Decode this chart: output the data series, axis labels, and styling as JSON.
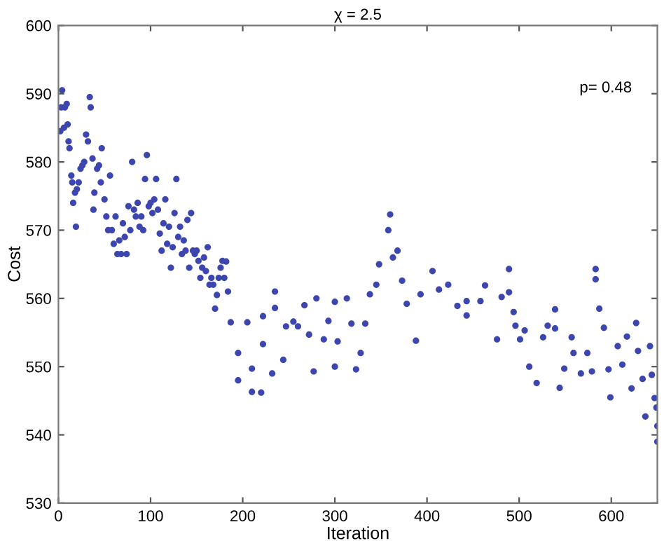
{
  "chart_data": {
    "type": "scatter",
    "title": "χ = 2.5",
    "xlabel": "Iteration",
    "ylabel": "Cost",
    "xlim": [
      0,
      650
    ],
    "ylim": [
      530,
      600
    ],
    "xticks": [
      0,
      100,
      200,
      300,
      400,
      500,
      600
    ],
    "yticks": [
      530,
      540,
      550,
      560,
      570,
      580,
      590,
      600
    ],
    "marker": "circle",
    "grid": false,
    "annotations": [
      "p= 0.48"
    ],
    "series": [
      {
        "color": "#3c46ae",
        "x": [
          2,
          3,
          4,
          6,
          7,
          9,
          10,
          11,
          12,
          14,
          15,
          16,
          18,
          19,
          20,
          22,
          24,
          26,
          28,
          30,
          32,
          34,
          35,
          37,
          38,
          39,
          42,
          44,
          46,
          47,
          50,
          52,
          54,
          56,
          58,
          60,
          62,
          64,
          66,
          68,
          70,
          72,
          74,
          76,
          78,
          80,
          82,
          84,
          86,
          88,
          90,
          92,
          94,
          96,
          98,
          100,
          102,
          104,
          106,
          108,
          110,
          112,
          114,
          116,
          118,
          120,
          122,
          124,
          126,
          128,
          130,
          132,
          134,
          136,
          138,
          140,
          142,
          144,
          146,
          148,
          150,
          152,
          154,
          156,
          158,
          160,
          162,
          164,
          166,
          168,
          170,
          172,
          174,
          176,
          178,
          180,
          182,
          184,
          187,
          195,
          195,
          205,
          210,
          210,
          220,
          222,
          222,
          232,
          235,
          235,
          244,
          247,
          255,
          260,
          267,
          272,
          277,
          280,
          288,
          293,
          300,
          300,
          303,
          313,
          318,
          323,
          328,
          333,
          338,
          345,
          348,
          358,
          360,
          363,
          368,
          373,
          378,
          388,
          393,
          406,
          413,
          423,
          433,
          443,
          443,
          458,
          463,
          476,
          481,
          489,
          489,
          494,
          496,
          501,
          506,
          511,
          519,
          526,
          531,
          539,
          539,
          544,
          549,
          557,
          559,
          567,
          574,
          579,
          583,
          583,
          587,
          592,
          597,
          599,
          607,
          612,
          617,
          622,
          627,
          629,
          634,
          637,
          642,
          644,
          647,
          649,
          650,
          650
        ],
        "values": [
          584.5,
          588,
          590.5,
          585,
          588,
          588.5,
          585.5,
          583,
          582,
          578,
          577,
          574,
          575.5,
          570.5,
          576,
          577,
          579,
          579.5,
          580,
          584,
          583,
          589.5,
          588,
          580.5,
          573,
          575.5,
          579,
          579.5,
          577,
          582,
          574.5,
          572,
          570,
          578,
          570,
          568,
          572,
          566.5,
          568.5,
          566.5,
          571,
          569,
          566.5,
          573.5,
          570,
          580,
          573,
          572,
          574,
          570.5,
          572,
          570,
          577.5,
          581,
          573.5,
          574,
          572.5,
          574.5,
          577.5,
          573,
          569.5,
          567,
          571,
          574.5,
          568,
          570.5,
          564.5,
          567.5,
          572.5,
          577.5,
          569,
          570.5,
          566.5,
          568.5,
          567,
          571.5,
          564.5,
          572.5,
          567,
          566.5,
          567,
          565.5,
          563,
          564.5,
          566,
          564,
          567.5,
          562,
          563,
          562,
          558.5,
          560.5,
          563,
          564.5,
          565.5,
          563,
          565.4,
          561,
          556.5,
          552,
          548,
          556.5,
          549.7,
          546.3,
          546.2,
          553.3,
          557.4,
          549,
          561,
          558.6,
          551,
          555.9,
          556.6,
          555.9,
          559,
          554.7,
          549.3,
          560,
          554,
          556.7,
          559.5,
          550,
          553.7,
          560,
          556.3,
          549.6,
          552,
          556.3,
          560.6,
          562,
          565,
          570,
          572.3,
          566,
          567,
          562.6,
          559.2,
          553.8,
          560.6,
          564,
          561.3,
          562,
          558.9,
          557.5,
          559.6,
          559.6,
          561.9,
          554,
          560.2,
          564.3,
          560.9,
          558,
          556,
          554,
          555.3,
          550,
          547.6,
          554.3,
          556,
          555.6,
          558.4,
          546.9,
          549.7,
          554.3,
          552,
          549,
          552,
          549.3,
          564.3,
          562.8,
          558.5,
          555.7,
          549.6,
          545.5,
          553,
          550.3,
          554.4,
          546.8,
          556.4,
          552.3,
          548.2,
          542.7,
          553,
          548.8,
          545.4,
          544,
          541.3,
          539
        ]
      }
    ]
  }
}
